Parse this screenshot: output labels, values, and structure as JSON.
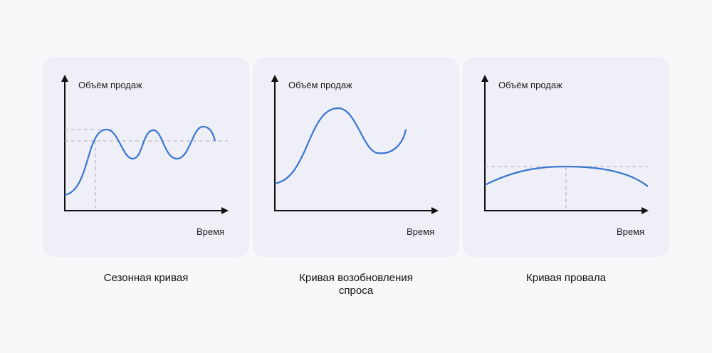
{
  "panels": [
    {
      "id": "seasonal",
      "y_axis_label": "Объём продаж",
      "x_axis_label": "Время",
      "caption": "Сезонная кривая"
    },
    {
      "id": "revival",
      "y_axis_label": "Объём продаж",
      "x_axis_label": "Время",
      "caption": "Кривая возобновления спроса"
    },
    {
      "id": "failure",
      "y_axis_label": "Объём продаж",
      "x_axis_label": "Время",
      "caption": "Кривая провала"
    }
  ],
  "colors": {
    "background": "#f8f8fa",
    "card": "#efeff7",
    "curve": "#3a76d0",
    "axis": "#111111",
    "guide": "#b9b9c4"
  }
}
